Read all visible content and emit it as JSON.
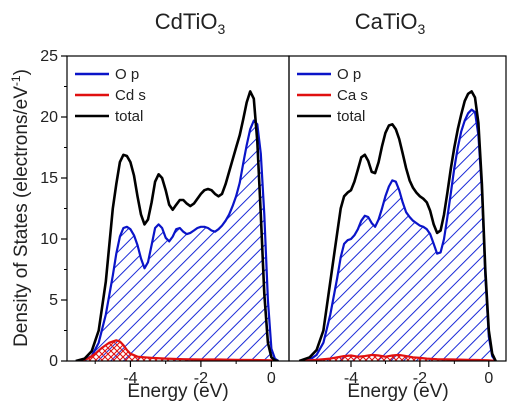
{
  "figure": {
    "ylabel": "Density of States (electrons/eV",
    "ylabel_sup": "-1",
    "ylabel_close": ")",
    "xlabel": "Energy (eV)"
  },
  "colors": {
    "o_p": "#0a14c8",
    "cation_s": "#e01010",
    "total": "#000000",
    "hatch_blue": "#1a2ad8",
    "hatch_red": "#e01010"
  },
  "chart_data": [
    {
      "type": "area",
      "title": "CdTiO",
      "title_sub": "3",
      "xlim": [
        -5.8,
        0.5
      ],
      "ylim": [
        0,
        25
      ],
      "xticks": [
        -4,
        -2,
        0
      ],
      "xtick_labels": [
        "-4",
        "-2",
        "0"
      ],
      "yticks": [
        0,
        5,
        10,
        15,
        20,
        25
      ],
      "ytick_labels": [
        "0",
        "5",
        "10",
        "15",
        "20",
        "25"
      ],
      "legend_position": "top-left",
      "series": [
        {
          "name": "O p",
          "key": "o_p",
          "x": [
            -5.55,
            -5.3,
            -5.1,
            -4.9,
            -4.7,
            -4.5,
            -4.4,
            -4.3,
            -4.2,
            -4.1,
            -4.0,
            -3.9,
            -3.8,
            -3.7,
            -3.6,
            -3.5,
            -3.4,
            -3.3,
            -3.2,
            -3.1,
            -3.0,
            -2.9,
            -2.8,
            -2.7,
            -2.6,
            -2.5,
            -2.4,
            -2.3,
            -2.2,
            -2.1,
            -2.0,
            -1.9,
            -1.8,
            -1.7,
            -1.6,
            -1.5,
            -1.4,
            -1.3,
            -1.2,
            -1.1,
            -1.0,
            -0.9,
            -0.8,
            -0.7,
            -0.6,
            -0.5,
            -0.4,
            -0.3,
            -0.2,
            -0.1,
            0.0,
            0.1,
            0.2
          ],
          "y": [
            0,
            0.1,
            0.4,
            1.5,
            3.8,
            7.0,
            8.8,
            10.2,
            10.9,
            11.0,
            10.8,
            10.3,
            9.5,
            8.4,
            7.6,
            8.1,
            9.5,
            10.9,
            11.2,
            10.9,
            10.1,
            9.8,
            10.2,
            10.8,
            10.9,
            10.6,
            10.4,
            10.5,
            10.7,
            10.9,
            11.0,
            11.0,
            10.9,
            10.7,
            10.6,
            10.8,
            11.1,
            11.5,
            12.0,
            12.7,
            13.5,
            14.6,
            16.2,
            17.7,
            19.0,
            19.7,
            19.4,
            17.0,
            12.0,
            5.0,
            1.0,
            0.2,
            0
          ]
        },
        {
          "name": "Cd s",
          "key": "cation_s",
          "x": [
            -5.5,
            -5.2,
            -5.0,
            -4.8,
            -4.6,
            -4.4,
            -4.3,
            -4.2,
            -4.1,
            -4.0,
            -3.8,
            -3.6,
            -3.4,
            -3.0,
            -2.5,
            -2.0,
            -1.5,
            -1.0,
            -0.5,
            0.0,
            0.2
          ],
          "y": [
            0,
            0.2,
            0.6,
            1.1,
            1.5,
            1.7,
            1.6,
            1.3,
            0.9,
            0.6,
            0.35,
            0.3,
            0.25,
            0.2,
            0.15,
            0.12,
            0.12,
            0.1,
            0.08,
            0.05,
            0
          ]
        },
        {
          "name": "total",
          "key": "total",
          "x": [
            -5.55,
            -5.3,
            -5.1,
            -4.9,
            -4.7,
            -4.6,
            -4.5,
            -4.4,
            -4.3,
            -4.2,
            -4.1,
            -4.0,
            -3.9,
            -3.8,
            -3.7,
            -3.6,
            -3.5,
            -3.4,
            -3.3,
            -3.2,
            -3.1,
            -3.0,
            -2.9,
            -2.8,
            -2.7,
            -2.6,
            -2.5,
            -2.4,
            -2.3,
            -2.2,
            -2.1,
            -2.0,
            -1.9,
            -1.8,
            -1.7,
            -1.6,
            -1.5,
            -1.4,
            -1.3,
            -1.2,
            -1.1,
            -1.0,
            -0.9,
            -0.8,
            -0.7,
            -0.6,
            -0.5,
            -0.4,
            -0.3,
            -0.2,
            -0.1,
            0.0,
            0.1,
            0.2
          ],
          "y": [
            0,
            0.2,
            0.8,
            2.5,
            6.5,
            9.5,
            12.5,
            14.5,
            16.3,
            16.9,
            16.8,
            16.3,
            15.2,
            13.5,
            12.0,
            11.2,
            11.6,
            13.0,
            14.7,
            15.3,
            15.0,
            14.0,
            12.8,
            12.4,
            12.8,
            13.2,
            13.2,
            12.9,
            12.7,
            12.9,
            13.3,
            13.7,
            14.0,
            14.1,
            14.0,
            13.7,
            13.5,
            13.7,
            14.5,
            15.5,
            16.5,
            17.5,
            18.5,
            19.8,
            21.2,
            22.1,
            21.5,
            18.0,
            12.0,
            5.5,
            1.5,
            0.3,
            0.05,
            0
          ]
        }
      ]
    },
    {
      "type": "area",
      "title": "CaTiO",
      "title_sub": "3",
      "xlim": [
        -5.8,
        0.5
      ],
      "ylim": [
        0,
        25
      ],
      "xticks": [
        -4,
        -2,
        0
      ],
      "xtick_labels": [
        "-4",
        "-2",
        "0"
      ],
      "legend_position": "top-left",
      "series": [
        {
          "name": "O p",
          "key": "o_p",
          "x": [
            -5.5,
            -5.2,
            -5.0,
            -4.8,
            -4.6,
            -4.4,
            -4.3,
            -4.2,
            -4.1,
            -4.0,
            -3.9,
            -3.8,
            -3.7,
            -3.6,
            -3.5,
            -3.4,
            -3.3,
            -3.2,
            -3.1,
            -3.0,
            -2.9,
            -2.8,
            -2.7,
            -2.6,
            -2.5,
            -2.4,
            -2.3,
            -2.2,
            -2.1,
            -2.0,
            -1.9,
            -1.8,
            -1.7,
            -1.6,
            -1.5,
            -1.4,
            -1.3,
            -1.2,
            -1.1,
            -1.0,
            -0.9,
            -0.8,
            -0.7,
            -0.6,
            -0.5,
            -0.4,
            -0.3,
            -0.2,
            -0.1,
            0.0,
            0.1,
            0.2
          ],
          "y": [
            0,
            0.1,
            0.5,
            1.5,
            3.8,
            6.8,
            8.5,
            9.6,
            9.9,
            10.0,
            10.3,
            10.8,
            11.5,
            11.9,
            11.8,
            11.3,
            11.0,
            11.6,
            12.5,
            13.5,
            14.3,
            14.8,
            14.7,
            14.0,
            13.0,
            12.2,
            11.8,
            11.5,
            11.3,
            11.1,
            11.0,
            10.8,
            10.4,
            9.6,
            8.8,
            8.9,
            10.0,
            11.8,
            13.8,
            15.8,
            17.5,
            18.8,
            19.7,
            20.3,
            20.6,
            20.4,
            18.5,
            14.0,
            7.0,
            2.0,
            0.4,
            0
          ]
        },
        {
          "name": "Ca s",
          "key": "cation_s",
          "x": [
            -5.5,
            -5.0,
            -4.6,
            -4.4,
            -4.2,
            -4.0,
            -3.8,
            -3.6,
            -3.4,
            -3.2,
            -3.0,
            -2.8,
            -2.6,
            -2.4,
            -2.2,
            -2.0,
            -1.8,
            -1.5,
            -1.0,
            -0.6,
            -0.3,
            0.0,
            0.2
          ],
          "y": [
            0,
            0.1,
            0.2,
            0.3,
            0.4,
            0.45,
            0.35,
            0.4,
            0.5,
            0.45,
            0.35,
            0.45,
            0.5,
            0.4,
            0.3,
            0.25,
            0.2,
            0.15,
            0.12,
            0.1,
            0.08,
            0.05,
            0
          ]
        },
        {
          "name": "total",
          "key": "total",
          "x": [
            -5.5,
            -5.2,
            -5.0,
            -4.8,
            -4.6,
            -4.4,
            -4.3,
            -4.2,
            -4.1,
            -4.0,
            -3.9,
            -3.8,
            -3.7,
            -3.6,
            -3.5,
            -3.4,
            -3.3,
            -3.2,
            -3.1,
            -3.0,
            -2.9,
            -2.8,
            -2.7,
            -2.6,
            -2.5,
            -2.4,
            -2.3,
            -2.2,
            -2.1,
            -2.0,
            -1.9,
            -1.8,
            -1.7,
            -1.6,
            -1.5,
            -1.4,
            -1.3,
            -1.2,
            -1.1,
            -1.0,
            -0.9,
            -0.8,
            -0.7,
            -0.6,
            -0.5,
            -0.4,
            -0.3,
            -0.2,
            -0.1,
            0.0,
            0.1,
            0.2
          ],
          "y": [
            0,
            0.3,
            0.9,
            2.5,
            6.5,
            10.5,
            12.5,
            13.5,
            13.8,
            14.0,
            14.7,
            15.7,
            16.7,
            16.9,
            16.4,
            15.5,
            15.4,
            16.3,
            17.6,
            18.7,
            19.3,
            19.4,
            19.0,
            18.2,
            17.0,
            15.8,
            14.8,
            14.2,
            13.8,
            13.5,
            13.3,
            13.0,
            12.3,
            11.2,
            10.5,
            10.7,
            12.0,
            13.8,
            15.8,
            17.5,
            19.0,
            20.2,
            21.3,
            21.9,
            22.1,
            21.6,
            19.5,
            14.5,
            7.5,
            2.5,
            0.6,
            0
          ]
        }
      ]
    }
  ]
}
